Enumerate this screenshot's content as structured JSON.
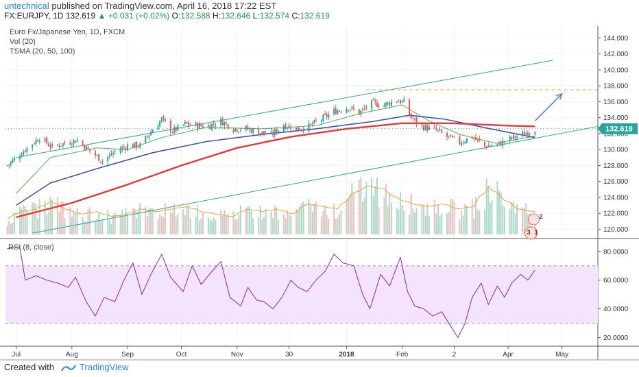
{
  "header": {
    "author": "untechnical",
    "published": "published on TradingView.com, April 16, 2018 17:22 EST",
    "symbol": "FX:EURJPY, 1D",
    "last": "132.619",
    "change": "+0.031 (+0.02%)",
    "o_label": "O:",
    "o": "132.588",
    "h_label": "H:",
    "h": "132.646",
    "l_label": "L:",
    "l": "132.574",
    "c_label": "C:",
    "c": "132.619"
  },
  "legend": {
    "title": "Euro Fx/Japanese Yen, 1D, FXCM",
    "vol": "Vol (20)",
    "tsma": "TSMA (20, 50, 100)",
    "rsi": "RSI (8, close)"
  },
  "price_tag": "132.619",
  "colors": {
    "up": "#26a69a",
    "down": "#ef5350",
    "ma20": "#4caf50",
    "ma50": "#3f51b5",
    "ma100": "#e53935",
    "channel": "#26a69a",
    "arrow": "#4a7fd6",
    "level": "#f0a030",
    "rsi": "#8e24aa",
    "rsi_band": "#f3e3fb"
  },
  "icons": [
    "trading-view-logo-icon",
    "dividend-split-badge-icon"
  ],
  "badges": [
    "2",
    "3",
    "1"
  ],
  "footer": {
    "created": "Created with",
    "brand": "TradingView"
  },
  "chart_data": [
    {
      "type": "candlestick",
      "title": "Euro Fx/Japanese Yen, 1D, FXCM",
      "ylim": [
        119,
        145.5
      ],
      "yticks": [
        120,
        122,
        124,
        126,
        128,
        130,
        132,
        134,
        136,
        138,
        140,
        142,
        144
      ],
      "ytick_labels": [
        "120.000",
        "122.000",
        "124.000",
        "126.000",
        "128.000",
        "130.000",
        "132.000",
        "134.000",
        "136.000",
        "138.000",
        "140.000",
        "142.000",
        "144.000"
      ],
      "xlim": [
        "2017-06-25",
        "2018-05-21"
      ],
      "xticks": [
        {
          "date": "2017-07-01",
          "label": "Jul"
        },
        {
          "date": "2017-08-01",
          "label": "Aug"
        },
        {
          "date": "2017-09-01",
          "label": "Sep"
        },
        {
          "date": "2017-10-01",
          "label": "Oct"
        },
        {
          "date": "2017-11-01",
          "label": "Nov"
        },
        {
          "date": "2017-11-30",
          "label": "30"
        },
        {
          "date": "2018-01-01",
          "label": "2018"
        },
        {
          "date": "2018-02-01",
          "label": "Feb"
        },
        {
          "date": "2018-03-02",
          "label": "2"
        },
        {
          "date": "2018-04-01",
          "label": "Apr"
        },
        {
          "date": "2018-05-01",
          "label": "May"
        }
      ],
      "close_path": [
        [
          "2017-06-26",
          128.0
        ],
        [
          "2017-07-07",
          130.2
        ],
        [
          "2017-07-14",
          131.5
        ],
        [
          "2017-07-21",
          130.3
        ],
        [
          "2017-07-28",
          130.8
        ],
        [
          "2017-08-04",
          131.2
        ],
        [
          "2017-08-11",
          129.8
        ],
        [
          "2017-08-18",
          128.6
        ],
        [
          "2017-08-25",
          129.7
        ],
        [
          "2017-09-01",
          130.5
        ],
        [
          "2017-09-08",
          130.5
        ],
        [
          "2017-09-15",
          132.5
        ],
        [
          "2017-09-20",
          133.8
        ],
        [
          "2017-09-26",
          132.3
        ],
        [
          "2017-10-03",
          133.2
        ],
        [
          "2017-10-10",
          133.0
        ],
        [
          "2017-10-17",
          133.0
        ],
        [
          "2017-10-23",
          133.6
        ],
        [
          "2017-10-30",
          132.6
        ],
        [
          "2017-11-06",
          132.6
        ],
        [
          "2017-11-13",
          132.2
        ],
        [
          "2017-11-20",
          131.8
        ],
        [
          "2017-11-27",
          133.1
        ],
        [
          "2017-12-04",
          132.6
        ],
        [
          "2017-12-11",
          132.9
        ],
        [
          "2017-12-18",
          133.8
        ],
        [
          "2017-12-25",
          134.8
        ],
        [
          "2018-01-02",
          135.3
        ],
        [
          "2018-01-08",
          134.6
        ],
        [
          "2018-01-15",
          135.8
        ],
        [
          "2018-01-22",
          135.6
        ],
        [
          "2018-01-29",
          136.2
        ],
        [
          "2018-02-02",
          135.9
        ],
        [
          "2018-02-06",
          134.0
        ],
        [
          "2018-02-12",
          132.9
        ],
        [
          "2018-02-20",
          132.4
        ],
        [
          "2018-02-26",
          131.6
        ],
        [
          "2018-03-05",
          130.9
        ],
        [
          "2018-03-12",
          131.6
        ],
        [
          "2018-03-19",
          130.4
        ],
        [
          "2018-03-26",
          130.6
        ],
        [
          "2018-04-02",
          131.3
        ],
        [
          "2018-04-09",
          131.9
        ],
        [
          "2018-04-16",
          132.6
        ]
      ],
      "series": [
        {
          "name": "TSMA 20",
          "points": [
            [
              "2017-07-01",
              124.5
            ],
            [
              "2017-07-20",
              129.0
            ],
            [
              "2017-08-15",
              130.2
            ],
            [
              "2017-09-01",
              130.0
            ],
            [
              "2017-09-20",
              131.5
            ],
            [
              "2017-10-15",
              132.8
            ],
            [
              "2017-11-15",
              132.6
            ],
            [
              "2017-12-15",
              133.0
            ],
            [
              "2018-01-10",
              134.6
            ],
            [
              "2018-02-01",
              135.6
            ],
            [
              "2018-02-15",
              133.7
            ],
            [
              "2018-03-05",
              131.9
            ],
            [
              "2018-03-25",
              130.8
            ],
            [
              "2018-04-16",
              131.7
            ]
          ]
        },
        {
          "name": "TSMA 50",
          "points": [
            [
              "2017-07-01",
              123.0
            ],
            [
              "2017-07-20",
              125.8
            ],
            [
              "2017-08-15",
              127.6
            ],
            [
              "2017-09-15",
              129.6
            ],
            [
              "2017-10-15",
              131.0
            ],
            [
              "2017-11-15",
              131.9
            ],
            [
              "2017-12-15",
              132.6
            ],
            [
              "2018-01-15",
              133.5
            ],
            [
              "2018-02-05",
              134.3
            ],
            [
              "2018-02-25",
              133.8
            ],
            [
              "2018-03-20",
              132.7
            ],
            [
              "2018-04-16",
              131.5
            ]
          ]
        },
        {
          "name": "TSMA 100",
          "points": [
            [
              "2017-07-01",
              121.5
            ],
            [
              "2017-08-01",
              123.3
            ],
            [
              "2017-09-01",
              125.6
            ],
            [
              "2017-10-01",
              128.0
            ],
            [
              "2017-11-01",
              130.2
            ],
            [
              "2017-12-01",
              131.6
            ],
            [
              "2018-01-01",
              132.6
            ],
            [
              "2018-02-01",
              133.3
            ],
            [
              "2018-03-01",
              133.3
            ],
            [
              "2018-04-01",
              133.0
            ],
            [
              "2018-04-16",
              132.9
            ]
          ]
        }
      ],
      "drawings": {
        "channel_upper": [
          [
            "2017-07-01",
            129.0
          ],
          [
            "2018-04-26",
            141.2
          ]
        ],
        "channel_lower": [
          [
            "2017-07-10",
            119.5
          ],
          [
            "2018-05-21",
            132.9
          ]
        ],
        "dashed_level": {
          "from": "2018-01-12",
          "to": "2018-05-21",
          "y": 137.5
        },
        "arrow": [
          [
            "2018-04-16",
            133.6
          ],
          [
            "2018-05-01",
            137.0
          ]
        ]
      },
      "last_price": 132.619
    },
    {
      "type": "bar",
      "title": "Vol (20)",
      "note": "volume histogram at bottom of price pane; bars alternate green/red, orange 20-period volume average",
      "relative_volume": [
        0.3,
        0.45,
        0.5,
        0.65,
        0.5,
        0.4,
        0.45,
        0.35,
        0.4,
        0.5,
        0.45,
        0.5,
        0.55,
        0.45,
        0.4,
        0.35,
        0.5,
        0.45,
        0.5,
        0.4,
        0.6,
        0.55,
        0.5,
        0.8,
        0.95,
        0.9,
        0.7,
        0.6,
        0.55,
        0.6,
        0.5,
        0.55,
        0.95,
        0.7,
        0.5,
        0.45
      ]
    },
    {
      "type": "line",
      "title": "RSI (8, close)",
      "ylim": [
        15,
        88
      ],
      "yticks": [
        20,
        40,
        60,
        80
      ],
      "ytick_labels": [
        "20.0000",
        "40.0000",
        "60.0000",
        "80.0000"
      ],
      "band": [
        30,
        70
      ],
      "points": [
        [
          "2017-06-26",
          82
        ],
        [
          "2017-07-03",
          83
        ],
        [
          "2017-07-06",
          60
        ],
        [
          "2017-07-12",
          63
        ],
        [
          "2017-07-18",
          60
        ],
        [
          "2017-07-24",
          58
        ],
        [
          "2017-07-30",
          55
        ],
        [
          "2017-08-03",
          62
        ],
        [
          "2017-08-09",
          45
        ],
        [
          "2017-08-14",
          35
        ],
        [
          "2017-08-19",
          48
        ],
        [
          "2017-08-25",
          45
        ],
        [
          "2017-08-30",
          60
        ],
        [
          "2017-09-04",
          72
        ],
        [
          "2017-09-09",
          50
        ],
        [
          "2017-09-14",
          64
        ],
        [
          "2017-09-20",
          78
        ],
        [
          "2017-09-25",
          62
        ],
        [
          "2017-10-02",
          52
        ],
        [
          "2017-10-07",
          70
        ],
        [
          "2017-10-12",
          57
        ],
        [
          "2017-10-18",
          66
        ],
        [
          "2017-10-23",
          73
        ],
        [
          "2017-10-28",
          48
        ],
        [
          "2017-11-03",
          42
        ],
        [
          "2017-11-07",
          55
        ],
        [
          "2017-11-12",
          46
        ],
        [
          "2017-11-16",
          45
        ],
        [
          "2017-11-21",
          40
        ],
        [
          "2017-11-26",
          48
        ],
        [
          "2017-12-01",
          60
        ],
        [
          "2017-12-05",
          55
        ],
        [
          "2017-12-10",
          52
        ],
        [
          "2017-12-15",
          60
        ],
        [
          "2017-12-20",
          66
        ],
        [
          "2017-12-25",
          78
        ],
        [
          "2017-12-30",
          72
        ],
        [
          "2018-01-05",
          70
        ],
        [
          "2018-01-10",
          50
        ],
        [
          "2018-01-14",
          40
        ],
        [
          "2018-01-20",
          64
        ],
        [
          "2018-01-25",
          56
        ],
        [
          "2018-01-31",
          76
        ],
        [
          "2018-02-04",
          52
        ],
        [
          "2018-02-08",
          42
        ],
        [
          "2018-02-13",
          40
        ],
        [
          "2018-02-18",
          35
        ],
        [
          "2018-02-23",
          38
        ],
        [
          "2018-02-28",
          28
        ],
        [
          "2018-03-04",
          20
        ],
        [
          "2018-03-08",
          30
        ],
        [
          "2018-03-12",
          48
        ],
        [
          "2018-03-17",
          58
        ],
        [
          "2018-03-21",
          43
        ],
        [
          "2018-03-26",
          56
        ],
        [
          "2018-03-30",
          48
        ],
        [
          "2018-04-03",
          58
        ],
        [
          "2018-04-08",
          64
        ],
        [
          "2018-04-12",
          60
        ],
        [
          "2018-04-16",
          67
        ]
      ]
    }
  ]
}
